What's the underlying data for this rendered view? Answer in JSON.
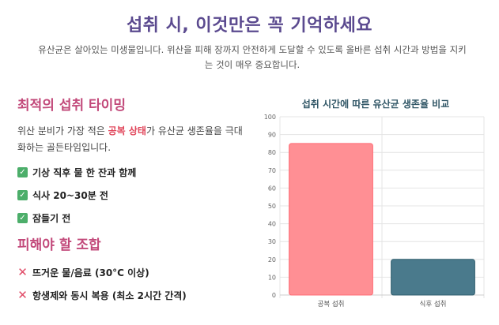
{
  "header": {
    "title": "섭취 시, 이것만은 꼭 기억하세요",
    "intro_line1": "유산균은 살아있는 미생물입니다. 위산을 피해 장까지 안전하게 도달할 수 있도록 올바른 섭취 시간과 방법을 지키",
    "intro_line2": "는 것이 매우 중요합니다."
  },
  "timing": {
    "title": "최적의 섭취 타이밍",
    "desc_before": "위산 분비가 가장 적은 ",
    "desc_highlight": "공복 상태",
    "desc_after": "가 유산균 생존율을 극대화하는 골든타임입니다.",
    "items": [
      "기상 직후 물 한 잔과 함께",
      "식사 20~30분 전",
      "잠들기 전"
    ]
  },
  "avoid": {
    "title": "피해야 할 조합",
    "items": [
      "뜨거운 물/음료 (30°C 이상)",
      "항생제와 동시 복용 (최소 2시간 간격)"
    ]
  },
  "chart_data": {
    "type": "bar",
    "title": "섭취 시간에 따른 유산균 생존율 비교",
    "categories": [
      "공복 섭취",
      "식후 섭취"
    ],
    "values": [
      85,
      20
    ],
    "colors": [
      "#ff8f94",
      "#4a7a8c"
    ],
    "ylim": [
      0,
      100
    ],
    "yticks": [
      "0",
      "10",
      "20",
      "30",
      "40",
      "50",
      "60",
      "70",
      "80",
      "90",
      "100"
    ],
    "grid": true
  }
}
